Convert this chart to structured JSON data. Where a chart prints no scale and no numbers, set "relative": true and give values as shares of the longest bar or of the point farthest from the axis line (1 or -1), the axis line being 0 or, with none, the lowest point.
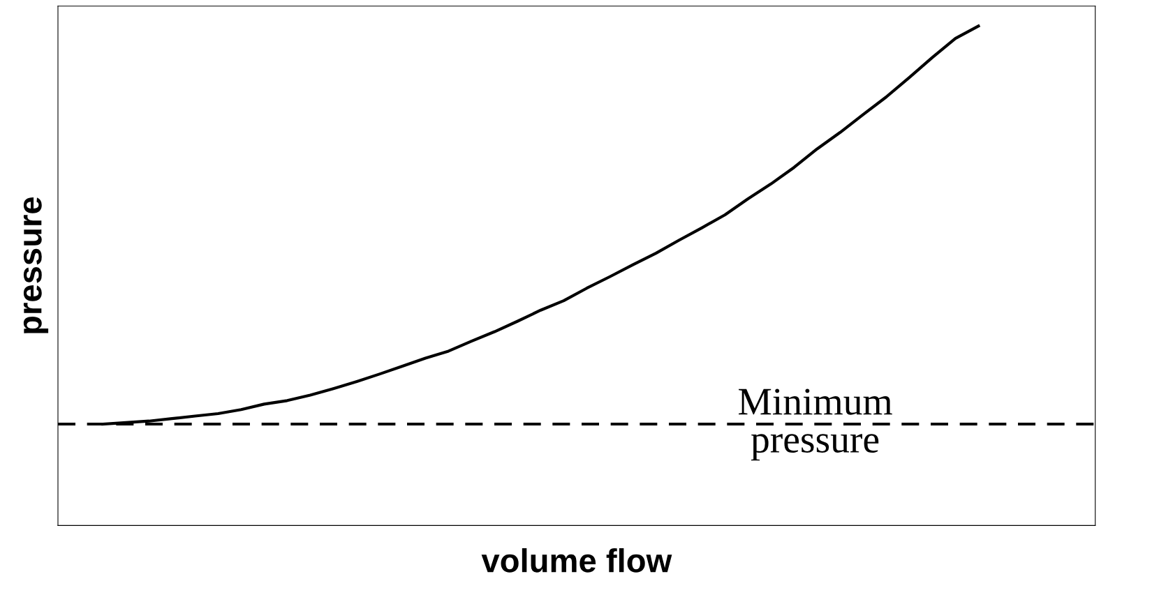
{
  "chart_data": {
    "type": "line",
    "xlabel": "volume flow",
    "ylabel": "pressure",
    "relative": true,
    "categories": [
      null,
      null,
      null,
      null,
      null,
      null,
      null,
      null,
      null,
      null,
      null,
      null,
      null,
      null,
      null,
      null,
      null,
      null,
      null,
      null,
      null,
      null,
      null,
      null,
      null,
      null,
      null,
      null,
      null,
      null,
      null,
      null,
      null,
      null,
      null,
      null,
      null,
      null,
      null
    ],
    "series": [
      {
        "color": "#000000",
        "values": [
          0.203,
          0.206,
          0.209,
          0.214,
          0.219,
          0.224,
          0.232,
          0.243,
          0.25,
          0.261,
          0.274,
          0.288,
          0.303,
          0.319,
          0.335,
          0.349,
          0.369,
          0.388,
          0.409,
          0.431,
          0.45,
          0.475,
          0.498,
          0.522,
          0.545,
          0.571,
          0.596,
          0.622,
          0.654,
          0.684,
          0.717,
          0.754,
          0.787,
          0.823,
          0.858,
          0.897,
          0.937,
          0.975,
          1.0
        ]
      }
    ],
    "ref_lines": [
      {
        "axis": "y",
        "value": 0.203,
        "color": "#000000",
        "line_style": "dashed"
      }
    ],
    "annotations": [
      {
        "text": "Minimum\npressure",
        "y": 0.203
      }
    ]
  }
}
